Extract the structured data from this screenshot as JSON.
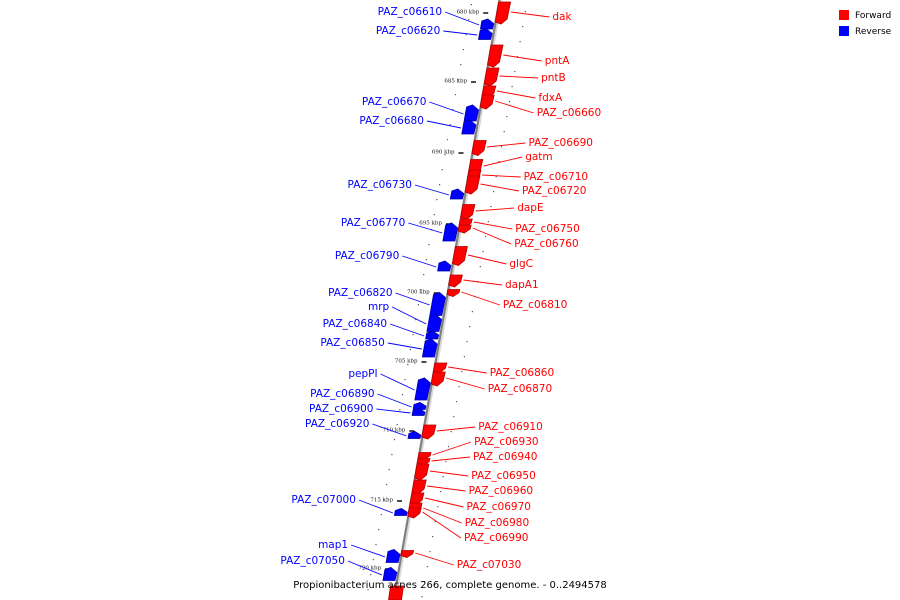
{
  "colors": {
    "forward": "#ff0000",
    "forward_dark": "#b30000",
    "reverse": "#0000ff",
    "reverse_dark": "#0000a8",
    "axis": "#808080",
    "leader_forward": "#ff0000",
    "leader_reverse": "#0000ff"
  },
  "legend": {
    "forward_label": "Forward",
    "reverse_label": "Reverse"
  },
  "caption": "Propionibacterium acnes 266, complete genome. - 0..2494578",
  "ticks": [
    {
      "label": "680 kbp"
    },
    {
      "label": "685 kbp"
    },
    {
      "label": "690 kbp"
    },
    {
      "label": "695 kbp"
    },
    {
      "label": "700 kbp"
    },
    {
      "label": "705 kbp"
    },
    {
      "label": "710 kbp"
    },
    {
      "label": "715 kbp"
    },
    {
      "label": "720 kbp"
    }
  ],
  "forward_genes": [
    {
      "label": "dak"
    },
    {
      "label": "pntA"
    },
    {
      "label": "pntB"
    },
    {
      "label": "fdxA"
    },
    {
      "label": "PAZ_c06660"
    },
    {
      "label": "PAZ_c06690"
    },
    {
      "label": "gatm"
    },
    {
      "label": "PAZ_c06710"
    },
    {
      "label": "PAZ_c06720"
    },
    {
      "label": "dapE"
    },
    {
      "label": "PAZ_c06750"
    },
    {
      "label": "PAZ_c06760"
    },
    {
      "label": "glgC"
    },
    {
      "label": "dapA1"
    },
    {
      "label": "PAZ_c06810"
    },
    {
      "label": "PAZ_c06860"
    },
    {
      "label": "PAZ_c06870"
    },
    {
      "label": "PAZ_c06910"
    },
    {
      "label": "PAZ_c06930"
    },
    {
      "label": "PAZ_c06940"
    },
    {
      "label": "PAZ_c06950"
    },
    {
      "label": "PAZ_c06960"
    },
    {
      "label": "PAZ_c06970"
    },
    {
      "label": "PAZ_c06980"
    },
    {
      "label": "PAZ_c06990"
    },
    {
      "label": "PAZ_c07030"
    }
  ],
  "reverse_genes": [
    {
      "label": "PAZ_c06610"
    },
    {
      "label": "PAZ_c06620"
    },
    {
      "label": "PAZ_c06670"
    },
    {
      "label": "PAZ_c06680"
    },
    {
      "label": "PAZ_c06730"
    },
    {
      "label": "PAZ_c06770"
    },
    {
      "label": "PAZ_c06790"
    },
    {
      "label": "PAZ_c06820"
    },
    {
      "label": "mrp"
    },
    {
      "label": "PAZ_c06840"
    },
    {
      "label": "PAZ_c06850"
    },
    {
      "label": "pepPI"
    },
    {
      "label": "PAZ_c06890"
    },
    {
      "label": "PAZ_c06900"
    },
    {
      "label": "PAZ_c06920"
    },
    {
      "label": "PAZ_c07000"
    },
    {
      "label": "map1"
    },
    {
      "label": "PAZ_c07050"
    }
  ]
}
